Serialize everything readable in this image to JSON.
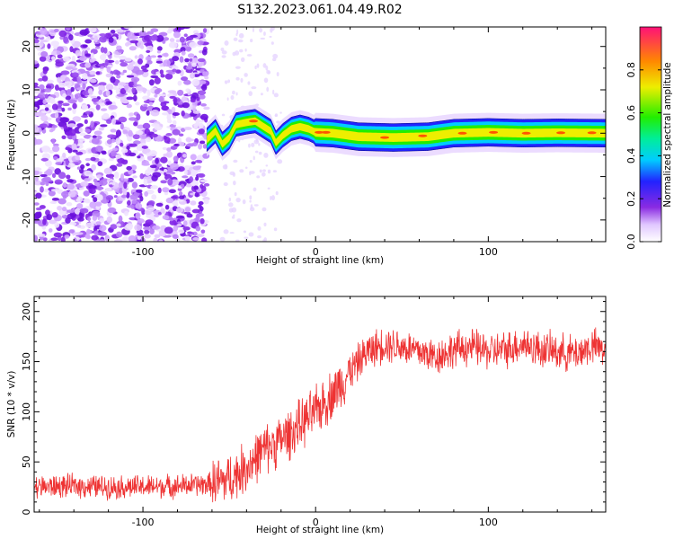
{
  "figure": {
    "title": "S132.2023.061.04.49.R02"
  },
  "chart_data": [
    {
      "type": "heatmap",
      "xlabel": "Height of straight line (km)",
      "ylabel": "Frequency (Hz)",
      "xlim": [
        -163,
        168
      ],
      "ylim": [
        -25,
        24.5
      ],
      "xticks": [
        -100,
        0,
        100
      ],
      "yticks": [
        -20,
        -10,
        0,
        10,
        20
      ],
      "colorbar": {
        "label": "Normalized spectral amplitude",
        "range": [
          0,
          1
        ],
        "ticks": [
          0.0,
          0.2,
          0.4,
          0.6,
          0.8
        ]
      },
      "signal_band_center_hz": [
        [
          -63,
          -1.5
        ],
        [
          -58,
          0.5
        ],
        [
          -54,
          -2.5
        ],
        [
          -50,
          -1.0
        ],
        [
          -46,
          2.0
        ],
        [
          -40,
          2.5
        ],
        [
          -35,
          2.8
        ],
        [
          -30,
          1.5
        ],
        [
          -26,
          0.5
        ],
        [
          -23,
          -2.2
        ],
        [
          -19,
          -0.5
        ],
        [
          -14,
          1.0
        ],
        [
          -9,
          1.5
        ],
        [
          -4,
          1.0
        ],
        [
          0,
          0.2
        ],
        [
          10,
          0.0
        ],
        [
          25,
          -0.8
        ],
        [
          45,
          -1.0
        ],
        [
          65,
          -0.8
        ],
        [
          80,
          0.0
        ],
        [
          100,
          0.2
        ],
        [
          120,
          0.0
        ],
        [
          140,
          0.1
        ],
        [
          168,
          0.0
        ]
      ],
      "noise_region_km": [
        -163,
        -55
      ]
    },
    {
      "type": "line",
      "xlabel": "Height of straight line (km)",
      "ylabel": "SNR (10 * v/v)",
      "xlim": [
        -163,
        168
      ],
      "ylim": [
        0,
        215
      ],
      "xticks": [
        -100,
        0,
        100
      ],
      "yticks": [
        0,
        50,
        100,
        150,
        200
      ],
      "series": [
        {
          "color": "#ee3333",
          "trend": {
            "x": [
              -163,
              -140,
              -120,
              -100,
              -80,
              -60,
              -50,
              -40,
              -30,
              -20,
              -10,
              0,
              10,
              20,
              30,
              40,
              50,
              60,
              70,
              80,
              90,
              100,
              110,
              120,
              130,
              140,
              150,
              160,
              168
            ],
            "y": [
              25,
              26,
              25,
              25,
              26,
              28,
              33,
              45,
              62,
              72,
              85,
              100,
              118,
              140,
              160,
              168,
              165,
              160,
              155,
              162,
              165,
              160,
              162,
              168,
              162,
              160,
              158,
              165,
              162
            ]
          }
        }
      ]
    }
  ]
}
